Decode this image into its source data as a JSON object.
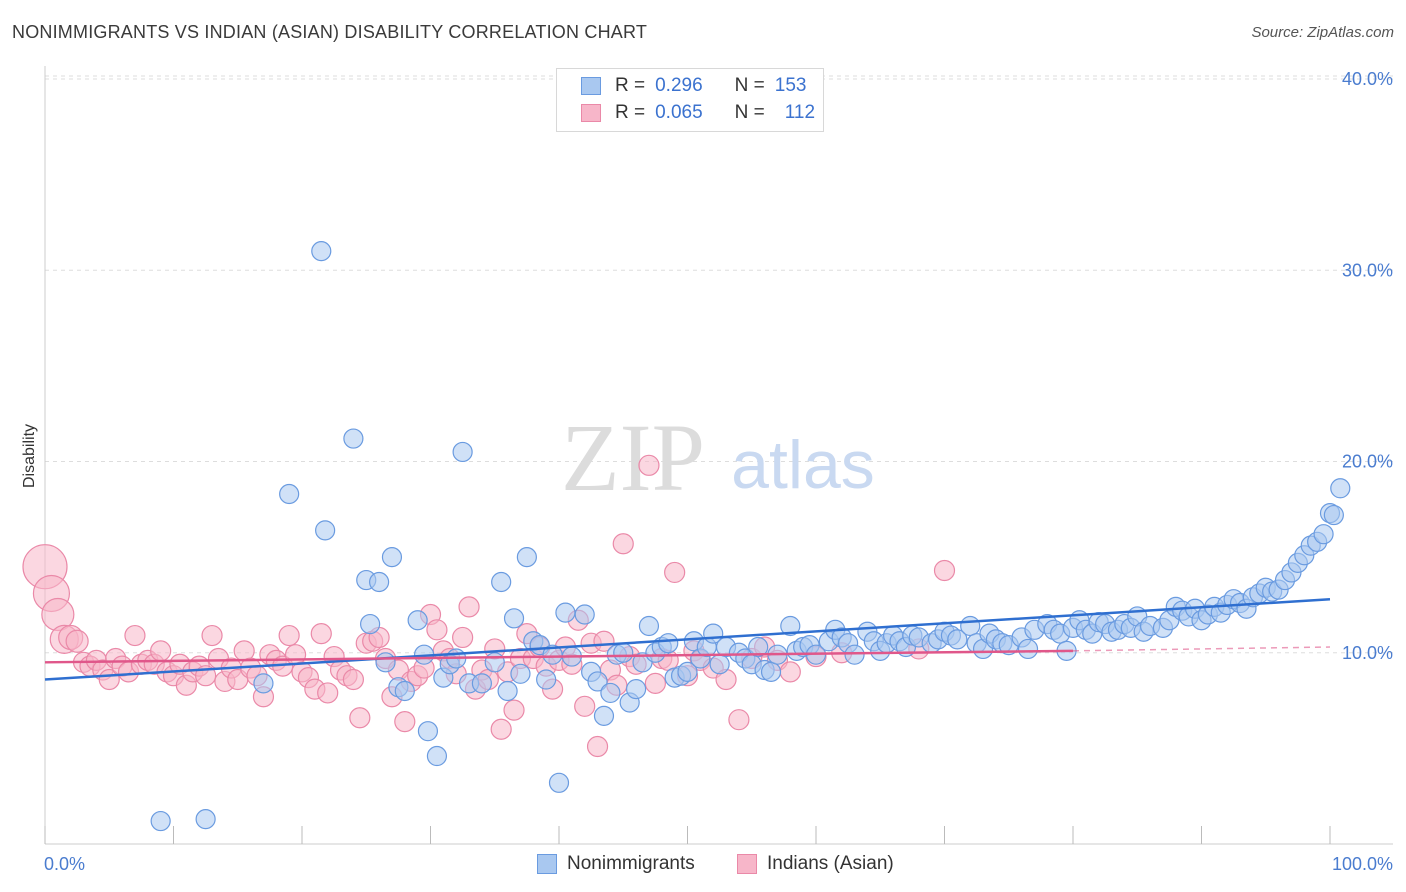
{
  "header": {
    "title": "NONIMMIGRANTS VS INDIAN (ASIAN) DISABILITY CORRELATION CHART",
    "source": "Source: ZipAtlas.com"
  },
  "watermark": {
    "zip": "ZIP",
    "atlas": "atlas"
  },
  "legend": {
    "rows": [
      {
        "r_label": "R =",
        "r_value": "0.296",
        "n_label": "N =",
        "n_value": "153"
      },
      {
        "r_label": "R =",
        "r_value": "0.065",
        "n_label": "N =",
        "n_value": "112"
      }
    ]
  },
  "bottom_legend": {
    "series1": "Nonimmigrants",
    "series2": "Indians (Asian)"
  },
  "colors": {
    "blue_fill": "#a9c8f0",
    "blue_stroke": "#6a9be0",
    "blue_line": "#2f6fd0",
    "pink_fill": "#f7b6c9",
    "pink_stroke": "#ea89a8",
    "pink_line": "#e0578a",
    "tick_text": "#4a7ccf",
    "grid": "#dddddd"
  },
  "chart_data": {
    "type": "scatter",
    "title": "NONIMMIGRANTS VS INDIAN (ASIAN) DISABILITY CORRELATION CHART",
    "xlabel": "",
    "ylabel": "Disability",
    "xlim": [
      0,
      100
    ],
    "ylim": [
      0,
      42
    ],
    "x_tick_labels": [
      "0.0%",
      "100.0%"
    ],
    "y_ticks": [
      10,
      20,
      30,
      40
    ],
    "y_tick_labels": [
      "10.0%",
      "20.0%",
      "30.0%",
      "40.0%"
    ],
    "grid": true,
    "legend_position": "top-center",
    "series": [
      {
        "name": "Nonimmigrants",
        "r": 0.296,
        "n": 153,
        "trend": {
          "x": [
            0,
            100
          ],
          "y": [
            8.6,
            12.8
          ]
        },
        "points": [
          [
            9,
            1.2
          ],
          [
            12.5,
            1.3
          ],
          [
            17,
            8.4
          ],
          [
            19,
            18.3
          ],
          [
            21.5,
            31
          ],
          [
            21.8,
            16.4
          ],
          [
            24,
            21.2
          ],
          [
            25,
            13.8
          ],
          [
            25.3,
            11.5
          ],
          [
            26,
            13.7
          ],
          [
            26.5,
            9.5
          ],
          [
            27,
            15
          ],
          [
            27.5,
            8.2
          ],
          [
            28,
            8
          ],
          [
            29,
            11.7
          ],
          [
            29.5,
            9.9
          ],
          [
            29.8,
            5.9
          ],
          [
            30.5,
            4.6
          ],
          [
            31,
            8.7
          ],
          [
            31.5,
            9.4
          ],
          [
            32,
            9.7
          ],
          [
            32.5,
            20.5
          ],
          [
            33,
            8.4
          ],
          [
            34,
            8.4
          ],
          [
            35,
            9.5
          ],
          [
            35.5,
            13.7
          ],
          [
            36,
            8
          ],
          [
            36.5,
            11.8
          ],
          [
            37,
            8.9
          ],
          [
            37.5,
            15
          ],
          [
            38,
            10.6
          ],
          [
            38.5,
            10.4
          ],
          [
            39,
            8.6
          ],
          [
            39.5,
            9.9
          ],
          [
            40,
            3.2
          ],
          [
            40.5,
            12.1
          ],
          [
            41,
            9.8
          ],
          [
            42,
            12
          ],
          [
            42.5,
            9
          ],
          [
            43,
            8.5
          ],
          [
            43.5,
            6.7
          ],
          [
            44,
            7.9
          ],
          [
            44.5,
            9.9
          ],
          [
            45,
            10
          ],
          [
            45.5,
            7.4
          ],
          [
            46,
            8.1
          ],
          [
            46.5,
            9.5
          ],
          [
            47,
            11.4
          ],
          [
            47.5,
            10
          ],
          [
            48,
            10.3
          ],
          [
            48.5,
            10.5
          ],
          [
            49,
            8.7
          ],
          [
            49.5,
            8.8
          ],
          [
            50,
            9
          ],
          [
            50.5,
            10.6
          ],
          [
            51,
            9.7
          ],
          [
            51.5,
            10.3
          ],
          [
            52,
            11
          ],
          [
            52.5,
            9.4
          ],
          [
            53,
            10.3
          ],
          [
            54,
            10
          ],
          [
            54.5,
            9.7
          ],
          [
            55,
            9.4
          ],
          [
            55.5,
            10.3
          ],
          [
            56,
            9.1
          ],
          [
            56.5,
            9
          ],
          [
            57,
            9.9
          ],
          [
            58,
            11.4
          ],
          [
            58.5,
            10.1
          ],
          [
            59,
            10.3
          ],
          [
            59.5,
            10.4
          ],
          [
            60,
            9.9
          ],
          [
            61,
            10.6
          ],
          [
            61.5,
            11.2
          ],
          [
            62,
            10.8
          ],
          [
            62.5,
            10.5
          ],
          [
            63,
            9.9
          ],
          [
            64,
            11.1
          ],
          [
            64.5,
            10.6
          ],
          [
            65,
            10.1
          ],
          [
            65.5,
            10.5
          ],
          [
            66,
            10.9
          ],
          [
            66.5,
            10.6
          ],
          [
            67,
            10.3
          ],
          [
            67.5,
            10.9
          ],
          [
            68,
            10.8
          ],
          [
            69,
            10.5
          ],
          [
            69.5,
            10.7
          ],
          [
            70,
            11.1
          ],
          [
            70.5,
            10.9
          ],
          [
            71,
            10.7
          ],
          [
            72,
            11.4
          ],
          [
            72.5,
            10.5
          ],
          [
            73,
            10.2
          ],
          [
            73.5,
            11
          ],
          [
            74,
            10.7
          ],
          [
            74.5,
            10.5
          ],
          [
            75,
            10.4
          ],
          [
            76,
            10.8
          ],
          [
            76.5,
            10.2
          ],
          [
            77,
            11.2
          ],
          [
            78,
            11.5
          ],
          [
            78.5,
            11.2
          ],
          [
            79,
            11
          ],
          [
            79.5,
            10.1
          ],
          [
            80,
            11.3
          ],
          [
            80.5,
            11.7
          ],
          [
            81,
            11.2
          ],
          [
            81.5,
            11
          ],
          [
            82,
            11.6
          ],
          [
            82.5,
            11.5
          ],
          [
            83,
            11.1
          ],
          [
            83.5,
            11.2
          ],
          [
            84,
            11.5
          ],
          [
            84.5,
            11.3
          ],
          [
            85,
            11.9
          ],
          [
            85.5,
            11.1
          ],
          [
            86,
            11.4
          ],
          [
            87,
            11.3
          ],
          [
            87.5,
            11.7
          ],
          [
            88,
            12.4
          ],
          [
            88.5,
            12.2
          ],
          [
            89,
            11.9
          ],
          [
            89.5,
            12.3
          ],
          [
            90,
            11.7
          ],
          [
            90.5,
            12
          ],
          [
            91,
            12.4
          ],
          [
            91.5,
            12.1
          ],
          [
            92,
            12.5
          ],
          [
            92.5,
            12.8
          ],
          [
            93,
            12.6
          ],
          [
            93.5,
            12.3
          ],
          [
            94,
            12.9
          ],
          [
            94.5,
            13.1
          ],
          [
            95,
            13.4
          ],
          [
            95.5,
            13.2
          ],
          [
            96,
            13.3
          ],
          [
            96.5,
            13.8
          ],
          [
            97,
            14.2
          ],
          [
            97.5,
            14.7
          ],
          [
            98,
            15.1
          ],
          [
            98.5,
            15.6
          ],
          [
            99,
            15.8
          ],
          [
            99.5,
            16.2
          ],
          [
            100,
            17.3
          ],
          [
            100.3,
            17.2
          ],
          [
            100.8,
            18.6
          ]
        ]
      },
      {
        "name": "Indians (Asian)",
        "r": 0.065,
        "n": 112,
        "trend": {
          "x": [
            0,
            80
          ],
          "y": [
            9.5,
            10.1
          ]
        },
        "trend_ext": {
          "x": [
            80,
            100
          ],
          "y": [
            10.1,
            10.3
          ]
        },
        "points": [
          [
            0,
            14.5,
            22
          ],
          [
            0.5,
            13.1,
            18
          ],
          [
            1,
            12,
            16
          ],
          [
            1.5,
            10.7,
            14
          ],
          [
            2,
            10.8,
            12
          ],
          [
            2.5,
            10.6,
            11
          ],
          [
            3,
            9.5,
            10
          ],
          [
            3.5,
            9.3,
            10
          ],
          [
            4,
            9.6,
            10
          ],
          [
            4.5,
            9.1,
            10
          ],
          [
            5,
            8.6,
            10
          ],
          [
            5.5,
            9.7,
            10
          ],
          [
            6,
            9.3,
            10
          ],
          [
            6.5,
            9,
            10
          ],
          [
            7,
            10.9,
            10
          ],
          [
            7.5,
            9.4,
            10
          ],
          [
            8,
            9.6,
            10
          ],
          [
            8.5,
            9.4,
            10
          ],
          [
            9,
            10.1,
            10
          ],
          [
            9.5,
            9,
            10
          ],
          [
            10,
            8.8,
            10
          ],
          [
            10.5,
            9.4,
            10
          ],
          [
            11,
            8.3,
            10
          ],
          [
            11.5,
            9,
            10
          ],
          [
            12,
            9.3,
            10
          ],
          [
            12.5,
            8.8,
            10
          ],
          [
            13,
            10.9,
            10
          ],
          [
            13.5,
            9.7,
            10
          ],
          [
            14,
            8.5,
            10
          ],
          [
            14.5,
            9.2,
            10
          ],
          [
            15,
            8.6,
            10
          ],
          [
            15.5,
            10.1,
            10
          ],
          [
            16,
            9.2,
            10
          ],
          [
            16.5,
            8.8,
            10
          ],
          [
            17,
            7.7,
            10
          ],
          [
            17.5,
            9.9,
            10
          ],
          [
            18,
            9.6,
            10
          ],
          [
            18.5,
            9.3,
            10
          ],
          [
            19,
            10.9,
            10
          ],
          [
            19.5,
            9.9,
            10
          ],
          [
            20,
            9,
            10
          ],
          [
            20.5,
            8.7,
            10
          ],
          [
            21,
            8.1,
            10
          ],
          [
            21.5,
            11,
            10
          ],
          [
            22,
            7.9,
            10
          ],
          [
            22.5,
            9.8,
            10
          ],
          [
            23,
            9.1,
            10
          ],
          [
            23.5,
            8.8,
            10
          ],
          [
            24,
            8.6,
            10
          ],
          [
            24.5,
            6.6,
            10
          ],
          [
            25,
            10.5,
            10
          ],
          [
            25.5,
            10.6,
            10
          ],
          [
            26,
            10.8,
            10
          ],
          [
            26.5,
            9.7,
            10
          ],
          [
            27,
            7.7,
            10
          ],
          [
            27.5,
            9.1,
            10
          ],
          [
            28,
            6.4,
            10
          ],
          [
            28.5,
            8.5,
            10
          ],
          [
            29,
            8.8,
            10
          ],
          [
            29.5,
            9.2,
            10
          ],
          [
            30,
            12,
            10
          ],
          [
            30.5,
            11.2,
            10
          ],
          [
            31,
            10.1,
            10
          ],
          [
            31.5,
            9.7,
            10
          ],
          [
            32,
            8.9,
            10
          ],
          [
            32.5,
            10.8,
            10
          ],
          [
            33,
            12.4,
            10
          ],
          [
            33.5,
            8.1,
            10
          ],
          [
            34,
            9.1,
            10
          ],
          [
            34.5,
            8.6,
            10
          ],
          [
            35,
            10.2,
            10
          ],
          [
            35.5,
            6,
            10
          ],
          [
            36,
            9,
            10
          ],
          [
            36.5,
            7,
            10
          ],
          [
            37,
            9.7,
            10
          ],
          [
            37.5,
            11,
            10
          ],
          [
            38,
            9.7,
            10
          ],
          [
            38.5,
            10.3,
            10
          ],
          [
            39,
            9.3,
            10
          ],
          [
            39.5,
            8.1,
            10
          ],
          [
            40,
            9.6,
            10
          ],
          [
            40.5,
            10.3,
            10
          ],
          [
            41,
            9.4,
            10
          ],
          [
            41.5,
            11.7,
            10
          ],
          [
            42,
            7.2,
            10
          ],
          [
            42.5,
            10.5,
            10
          ],
          [
            43,
            5.1,
            10
          ],
          [
            43.5,
            10.6,
            10
          ],
          [
            44,
            9.1,
            10
          ],
          [
            44.5,
            8.3,
            10
          ],
          [
            45,
            15.7,
            10
          ],
          [
            45.5,
            9.8,
            10
          ],
          [
            46,
            9.4,
            10
          ],
          [
            47,
            19.8,
            10
          ],
          [
            47.5,
            8.4,
            10
          ],
          [
            48,
            9.7,
            10
          ],
          [
            48.5,
            9.6,
            10
          ],
          [
            49,
            14.2,
            10
          ],
          [
            50,
            8.8,
            10
          ],
          [
            50.5,
            10.1,
            10
          ],
          [
            51,
            9.6,
            10
          ],
          [
            52,
            9.2,
            10
          ],
          [
            53,
            8.6,
            10
          ],
          [
            54,
            6.5,
            10
          ],
          [
            55,
            9.7,
            10
          ],
          [
            56,
            10.3,
            10
          ],
          [
            57,
            9.6,
            10
          ],
          [
            58,
            9,
            10
          ],
          [
            60,
            9.8,
            10
          ],
          [
            70,
            14.3,
            10
          ],
          [
            62,
            10,
            10
          ],
          [
            68,
            10.2,
            10
          ]
        ]
      }
    ]
  }
}
